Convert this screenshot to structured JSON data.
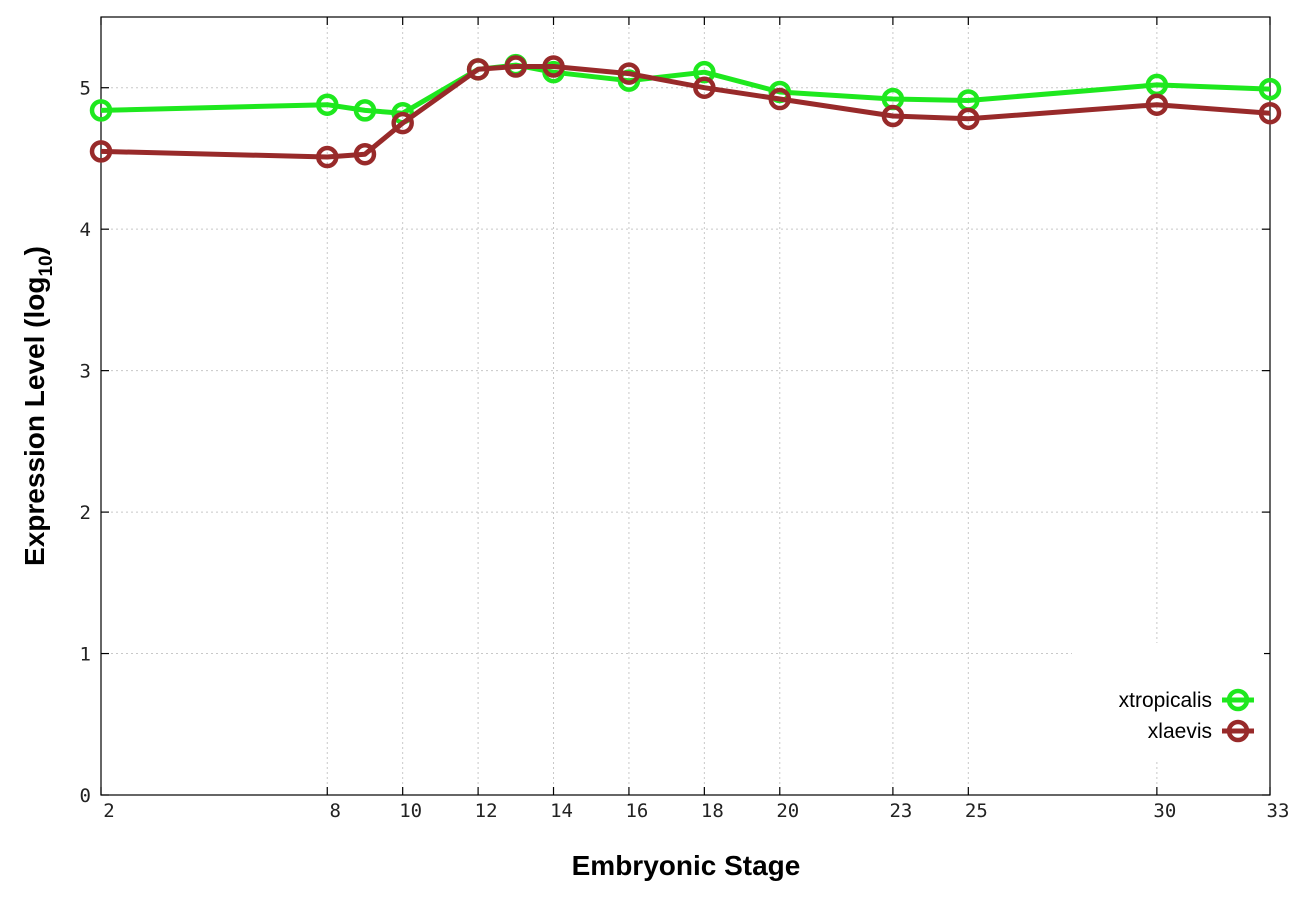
{
  "chart_data": {
    "type": "line",
    "xlabel": "Embryonic Stage",
    "ylabel_main": "Expression Level (log",
    "ylabel_sub": "10",
    "ylabel_close": ")",
    "xlim": [
      2,
      33
    ],
    "ylim": [
      0,
      5.5
    ],
    "x_positions": {
      "2": 0,
      "8": 6,
      "9": 7,
      "10": 8,
      "12": 10,
      "13": 11,
      "14": 12,
      "16": 14,
      "18": 16,
      "20": 18,
      "23": 21,
      "25": 23,
      "30": 28,
      "33": 31
    },
    "x_tick_labels": [
      "2",
      "8",
      "10",
      "12",
      "14",
      "16",
      "18",
      "20",
      "23",
      "25",
      "30",
      "33"
    ],
    "y_tick_labels": [
      "0",
      "1",
      "2",
      "3",
      "4",
      "5"
    ],
    "y_ticks": [
      0,
      1,
      2,
      3,
      4,
      5
    ],
    "grid": true,
    "legend_position": "bottom-right",
    "series": [
      {
        "name": "xtropicalis",
        "color": "#1ee81e",
        "points": [
          {
            "x": "2",
            "y": 4.84
          },
          {
            "x": "8",
            "y": 4.88
          },
          {
            "x": "9",
            "y": 4.84
          },
          {
            "x": "10",
            "y": 4.82
          },
          {
            "x": "12",
            "y": 5.13
          },
          {
            "x": "13",
            "y": 5.16
          },
          {
            "x": "14",
            "y": 5.11
          },
          {
            "x": "16",
            "y": 5.05
          },
          {
            "x": "18",
            "y": 5.11
          },
          {
            "x": "20",
            "y": 4.97
          },
          {
            "x": "23",
            "y": 4.92
          },
          {
            "x": "25",
            "y": 4.91
          },
          {
            "x": "30",
            "y": 5.02
          },
          {
            "x": "33",
            "y": 4.99
          }
        ]
      },
      {
        "name": "xlaevis",
        "color": "#982a2a",
        "points": [
          {
            "x": "2",
            "y": 4.55
          },
          {
            "x": "8",
            "y": 4.51
          },
          {
            "x": "9",
            "y": 4.53
          },
          {
            "x": "10",
            "y": 4.75
          },
          {
            "x": "12",
            "y": 5.13
          },
          {
            "x": "13",
            "y": 5.15
          },
          {
            "x": "14",
            "y": 5.15
          },
          {
            "x": "16",
            "y": 5.1
          },
          {
            "x": "18",
            "y": 5.0
          },
          {
            "x": "20",
            "y": 4.92
          },
          {
            "x": "23",
            "y": 4.8
          },
          {
            "x": "25",
            "y": 4.78
          },
          {
            "x": "30",
            "y": 4.88
          },
          {
            "x": "33",
            "y": 4.82
          }
        ]
      }
    ]
  }
}
